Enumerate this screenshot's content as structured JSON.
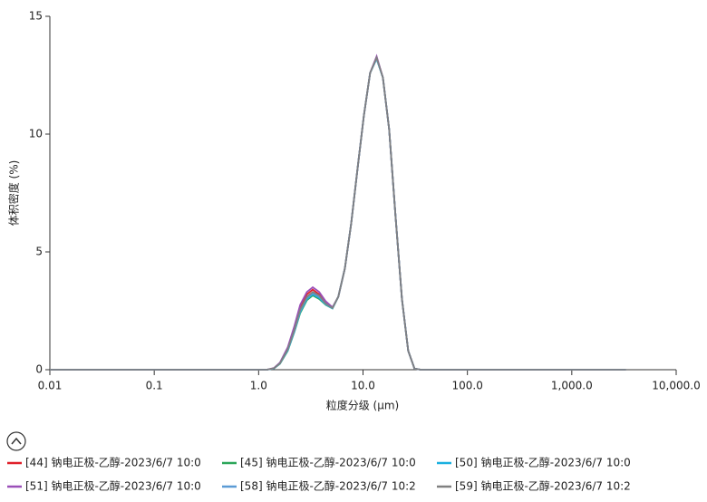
{
  "chart_data": {
    "type": "line",
    "x_label": "粒度分级 (μm)",
    "y_label": "体积密度 (%)",
    "xscale": "log",
    "xlim": [
      0.01,
      10000
    ],
    "ylim": [
      0,
      15
    ],
    "xticks": [
      0.01,
      0.1,
      {
        "value": 1,
        "label": "1.0"
      },
      {
        "value": 10,
        "label": "10.0"
      },
      {
        "value": 100,
        "label": "100.0"
      },
      {
        "value": 1000,
        "label": "1,000.0"
      },
      {
        "value": 10000,
        "label": "10,000.0"
      }
    ],
    "yticks": [
      0,
      5,
      10,
      15
    ],
    "legend": "bottom",
    "x": [
      0.01,
      1.0,
      1.2,
      1.4,
      1.6,
      1.9,
      2.2,
      2.5,
      2.9,
      3.3,
      3.8,
      4.4,
      5.1,
      5.8,
      6.7,
      7.7,
      8.9,
      10.2,
      11.7,
      13.5,
      15.5,
      17.8,
      20.5,
      23.6,
      27.1,
      31.1,
      35.7,
      3300
    ],
    "series": [
      {
        "name": "[44] 钠电正极-乙醇-2023/6/7 10:0",
        "color": "#e0202a",
        "values": [
          0,
          0,
          0,
          0.06,
          0.28,
          0.9,
          1.75,
          2.6,
          3.2,
          3.4,
          3.2,
          2.85,
          2.62,
          3.1,
          4.3,
          6.2,
          8.6,
          10.8,
          12.6,
          13.25,
          12.4,
          10.2,
          6.5,
          3.0,
          0.8,
          0.05,
          0,
          0
        ]
      },
      {
        "name": "[45] 钠电正极-乙醇-2023/6/7 10:0",
        "color": "#2ca65a",
        "values": [
          0,
          0,
          0,
          0.05,
          0.25,
          0.8,
          1.6,
          2.4,
          2.95,
          3.15,
          3.0,
          2.75,
          2.6,
          3.1,
          4.3,
          6.2,
          8.6,
          10.8,
          12.6,
          13.2,
          12.4,
          10.2,
          6.5,
          3.0,
          0.8,
          0.05,
          0,
          0
        ]
      },
      {
        "name": "[50] 钠电正极-乙醇-2023/6/7 10:0",
        "color": "#1ab0e0",
        "values": [
          0,
          0,
          0,
          0.05,
          0.26,
          0.82,
          1.62,
          2.45,
          3.0,
          3.2,
          3.05,
          2.77,
          2.6,
          3.1,
          4.3,
          6.2,
          8.6,
          10.8,
          12.6,
          13.2,
          12.4,
          10.2,
          6.5,
          3.0,
          0.8,
          0.05,
          0,
          0
        ]
      },
      {
        "name": "[51] 钠电正极-乙醇-2023/6/7 10:0",
        "color": "#9b4fb8",
        "values": [
          0,
          0,
          0,
          0.07,
          0.3,
          0.95,
          1.85,
          2.75,
          3.3,
          3.5,
          3.3,
          2.9,
          2.65,
          3.1,
          4.3,
          6.2,
          8.6,
          10.8,
          12.6,
          13.3,
          12.4,
          10.2,
          6.5,
          3.0,
          0.8,
          0.05,
          0,
          0
        ]
      },
      {
        "name": "[58] 钠电正极-乙醇-2023/6/7 10:2",
        "color": "#5b9bd5",
        "values": [
          0,
          0,
          0,
          0.05,
          0.27,
          0.85,
          1.65,
          2.5,
          3.05,
          3.25,
          3.1,
          2.8,
          2.62,
          3.1,
          4.3,
          6.2,
          8.6,
          10.8,
          12.6,
          13.2,
          12.4,
          10.2,
          6.5,
          3.0,
          0.8,
          0.05,
          0,
          0
        ]
      },
      {
        "name": "[59] 钠电正极-乙醇-2023/6/7 10:2",
        "color": "#808080",
        "values": [
          0,
          0,
          0,
          0.06,
          0.27,
          0.87,
          1.7,
          2.55,
          3.1,
          3.3,
          3.15,
          2.8,
          2.62,
          3.1,
          4.3,
          6.2,
          8.6,
          10.8,
          12.6,
          13.25,
          12.4,
          10.2,
          6.5,
          3.0,
          0.8,
          0.05,
          0,
          0
        ]
      }
    ]
  }
}
